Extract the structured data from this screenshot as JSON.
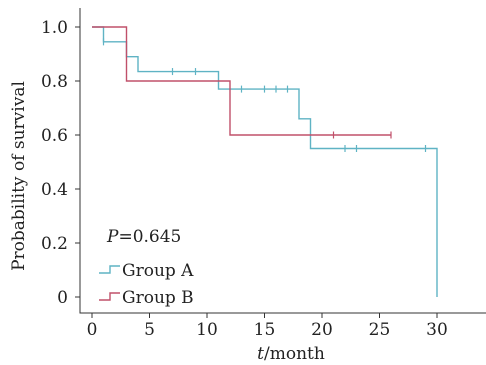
{
  "chart_data": {
    "type": "line",
    "subtype": "kaplan-meier survival curve",
    "xlabel_italic": "t",
    "xlabel_rest": "/month",
    "ylabel": "Probability of survival",
    "xlim": [
      0,
      30
    ],
    "ylim": [
      0,
      1.0
    ],
    "x_ticks": [
      0,
      5,
      10,
      15,
      20,
      25,
      30
    ],
    "y_ticks": [
      0,
      0.2,
      0.4,
      0.6,
      0.8,
      1.0
    ],
    "x_tick_labels": [
      "0",
      "5",
      "10",
      "15",
      "20",
      "25",
      "30"
    ],
    "y_tick_labels": [
      "0",
      "0.2",
      "0.4",
      "0.6",
      "0.8",
      "1.0"
    ],
    "grid": false,
    "legend_position": "bottom-left",
    "annotation_italic": "P",
    "annotation_rest": "=0.645",
    "series": [
      {
        "name": "Group A",
        "color": "#5fb3c4",
        "steps": [
          {
            "x": 0,
            "y": 1.0
          },
          {
            "x": 1,
            "y": 0.945
          },
          {
            "x": 3,
            "y": 0.89
          },
          {
            "x": 4,
            "y": 0.835
          },
          {
            "x": 11,
            "y": 0.77
          },
          {
            "x": 18,
            "y": 0.66
          },
          {
            "x": 19,
            "y": 0.55
          },
          {
            "x": 30,
            "y": 0
          }
        ],
        "end_x": 30,
        "censored": [
          {
            "x": 1,
            "y": 0.945
          },
          {
            "x": 7,
            "y": 0.835
          },
          {
            "x": 9,
            "y": 0.835
          },
          {
            "x": 13,
            "y": 0.77
          },
          {
            "x": 15,
            "y": 0.77
          },
          {
            "x": 16,
            "y": 0.77
          },
          {
            "x": 17,
            "y": 0.77
          },
          {
            "x": 22,
            "y": 0.55
          },
          {
            "x": 23,
            "y": 0.55
          },
          {
            "x": 29,
            "y": 0.55
          }
        ]
      },
      {
        "name": "Group B",
        "color": "#c0506a",
        "steps": [
          {
            "x": 0,
            "y": 1.0
          },
          {
            "x": 3,
            "y": 0.8
          },
          {
            "x": 12,
            "y": 0.6
          }
        ],
        "end_x": 26,
        "censored": [
          {
            "x": 21,
            "y": 0.6
          },
          {
            "x": 26,
            "y": 0.6
          }
        ]
      }
    ]
  }
}
